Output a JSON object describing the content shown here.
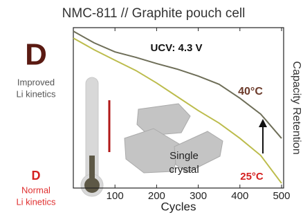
{
  "chart_data": {
    "type": "line",
    "title": "NMC-811 // Graphite pouch cell",
    "x_label": "Cycles",
    "y_label": "Capacity Retention",
    "x": [
      0,
      50,
      100,
      150,
      200,
      250,
      300,
      350,
      400,
      450,
      500
    ],
    "series": [
      {
        "name": "40°C",
        "color": "#6e6e58",
        "values": [
          97.8,
          90.5,
          84.9,
          81.5,
          77.6,
          74.1,
          69.8,
          64.7,
          56.0,
          46.1,
          31.0
        ]
      },
      {
        "name": "25°C",
        "color": "#bcbc4c",
        "values": [
          93.5,
          86.2,
          79.7,
          73.3,
          65.5,
          56.9,
          48.3,
          40.5,
          31.0,
          20.3,
          3.0
        ]
      }
    ],
    "series_label_colors": [
      "#6b3a2a",
      "#d42020"
    ],
    "xlim": [
      0,
      505
    ],
    "ylim": [
      0,
      100
    ],
    "xticks": [
      100,
      200,
      300,
      400,
      500
    ],
    "annotations": {
      "ucv": "UCV: 4.3 V",
      "crystal": [
        "Single",
        "crystal"
      ]
    },
    "left_panel": {
      "improved_symbol": "D",
      "improved_text": [
        "Improved",
        "Li kinetics"
      ],
      "normal_symbol": "D",
      "normal_text": [
        "Normal",
        "Li kinetics"
      ]
    }
  }
}
